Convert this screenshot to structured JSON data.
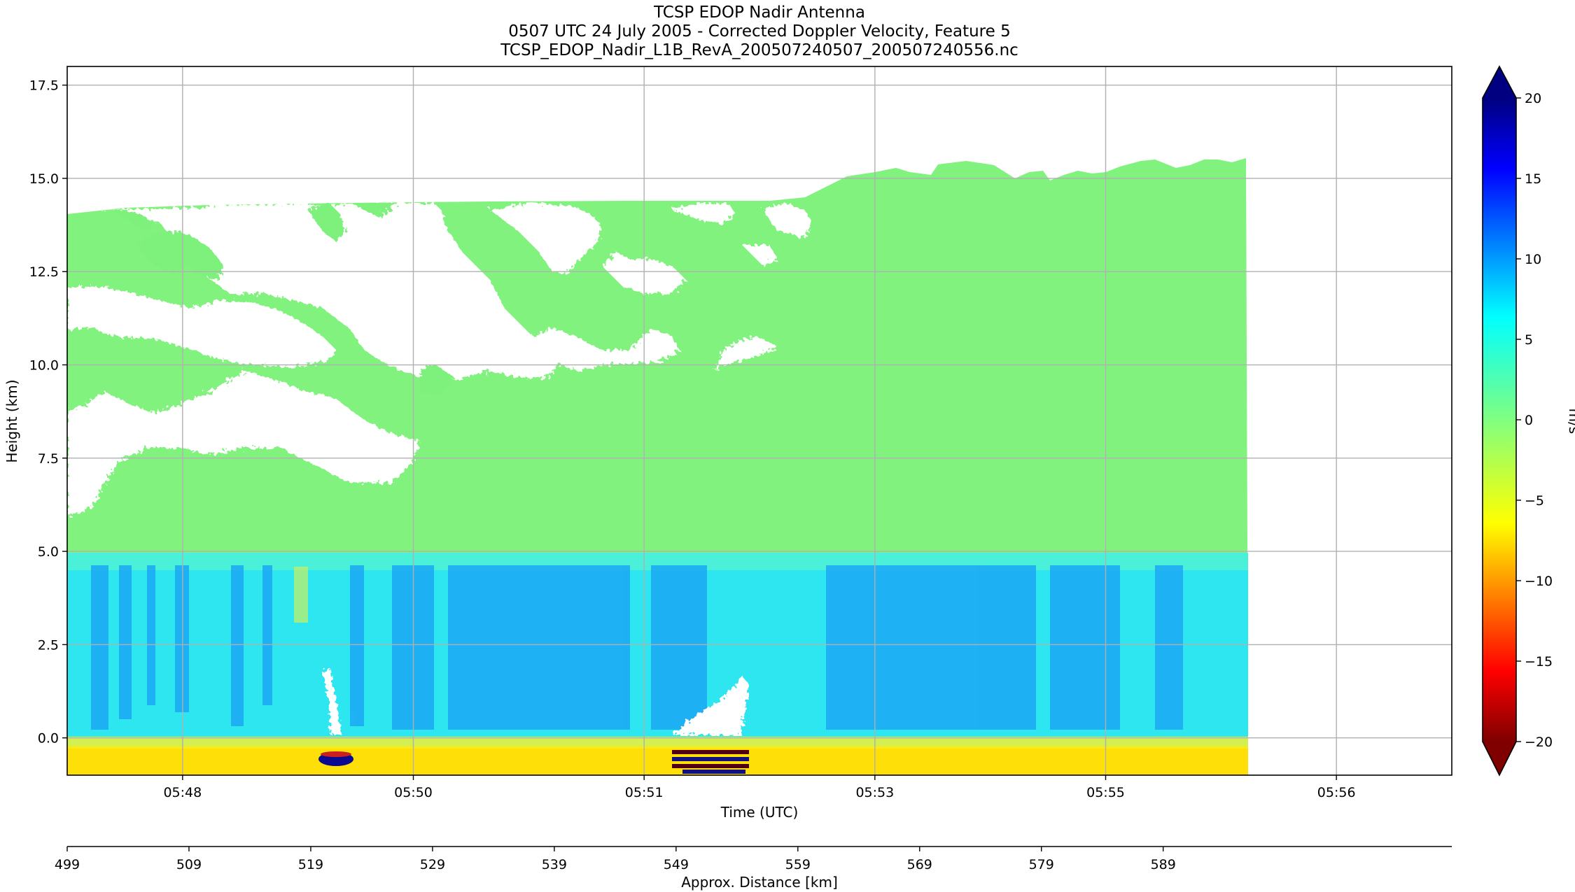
{
  "figure": {
    "title_lines": [
      "TCSP EDOP Nadir Antenna",
      "0507 UTC 24 July 2005 - Corrected Doppler Velocity, Feature 5",
      "TCSP_EDOP_Nadir_L1B_RevA_200507240507_200507240556.nc"
    ]
  },
  "chart_data": {
    "type": "heatmap",
    "title": "TCSP EDOP Nadir Antenna\n0507 UTC 24 July 2005 - Corrected Doppler Velocity, Feature 5\nTCSP_EDOP_Nadir_L1B_RevA_200507240507_200507240556.nc",
    "xlabel": "Time (UTC)",
    "ylabel": "Height (km)",
    "x_ticks": [
      {
        "label": "05:48",
        "min": 0.5
      },
      {
        "label": "05:50",
        "min": 2.5
      },
      {
        "label": "05:51",
        "min": 4.5
      },
      {
        "label": "05:53",
        "min": 6.5
      },
      {
        "label": "05:55",
        "min": 8.5
      },
      {
        "label": "05:56",
        "min": 10.5
      }
    ],
    "xlim_min": [
      -0.5,
      11.5
    ],
    "data_end_min": 9.72,
    "ylim": [
      -1.0,
      18.0
    ],
    "y_ticks": [
      0.0,
      2.5,
      5.0,
      7.5,
      10.0,
      12.5,
      15.0,
      17.5
    ],
    "y_tick_labels": [
      "0.0",
      "2.5",
      "5.0",
      "7.5",
      "10.0",
      "12.5",
      "15.0",
      "17.5"
    ],
    "grid": true,
    "secondary_x_axis": {
      "label": "Approx. Distance [km]",
      "ticks": [
        499,
        509,
        519,
        529,
        539,
        549,
        559,
        569,
        579,
        589
      ],
      "xlim": [
        499,
        612.7
      ]
    },
    "colorbar": {
      "label": "m/s",
      "vmin": -20,
      "vmax": 20,
      "ticks": [
        -20,
        -15,
        -10,
        -5,
        0,
        5,
        10,
        15,
        20
      ],
      "tick_labels": [
        "−20",
        "−15",
        "−10",
        "−5",
        "0",
        "5",
        "10",
        "15",
        "20"
      ],
      "extend": "both",
      "colormap": "jet_r"
    },
    "fields": [
      {
        "region": "upper atmosphere (5-15.5 km)",
        "velocity_ms": 0
      },
      {
        "region": "melting layer and below (0-4.8 km)",
        "velocity_ms": 6
      },
      {
        "region": "surface return (below 0 km)",
        "velocity_ms": -6
      }
    ]
  }
}
